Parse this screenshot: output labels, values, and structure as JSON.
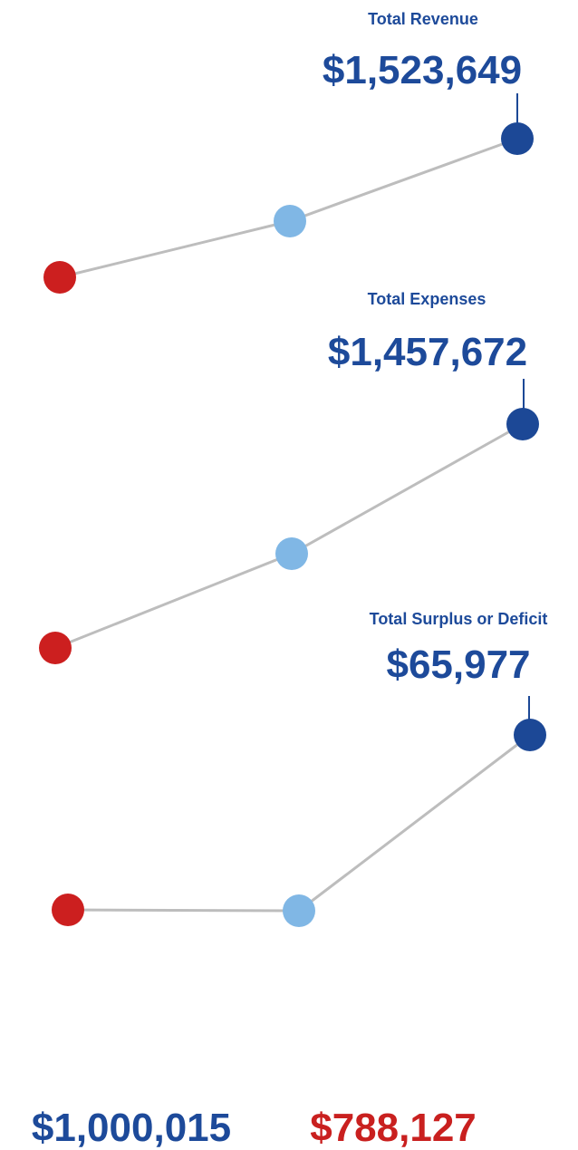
{
  "panels": [
    {
      "title": "Total Revenue",
      "value": "$1,523,649"
    },
    {
      "title": "Total Expenses",
      "value": "$1,457,672"
    },
    {
      "title": "Total Surplus or Deficit",
      "value": "$65,977"
    }
  ],
  "footer": {
    "left": "$1,000,015",
    "right": "$788,127"
  }
}
